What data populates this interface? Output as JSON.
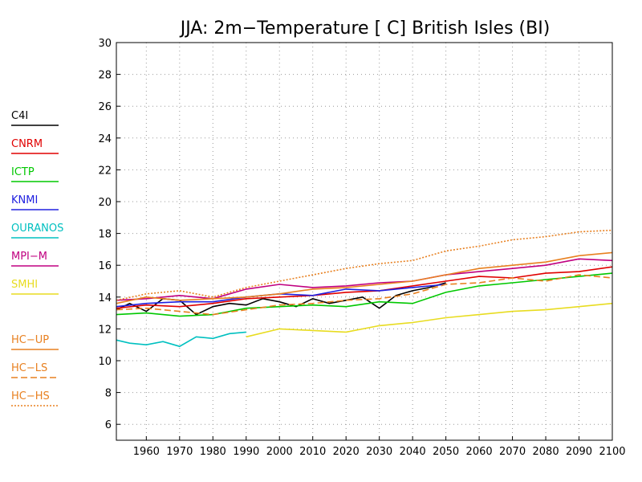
{
  "chart_data": {
    "type": "line",
    "title": "JJA: 2m−Temperature [   C] British Isles (BI)",
    "xlabel": "",
    "ylabel": "",
    "xlim": [
      1951,
      2100
    ],
    "ylim": [
      5,
      30
    ],
    "x_ticks": [
      1960,
      1970,
      1980,
      1990,
      2000,
      2010,
      2020,
      2030,
      2040,
      2050,
      2060,
      2070,
      2080,
      2090,
      2100
    ],
    "y_ticks": [
      6,
      8,
      10,
      12,
      14,
      16,
      18,
      20,
      22,
      24,
      26,
      28,
      30
    ],
    "grid": true,
    "legend_position": "left",
    "series": [
      {
        "name": "C4I",
        "color": "#000000",
        "dash": "solid",
        "x": [
          1951,
          1955,
          1960,
          1965,
          1970,
          1975,
          1980,
          1985,
          1990,
          1995,
          2000,
          2005,
          2010,
          2015,
          2020,
          2025,
          2030,
          2035,
          2040,
          2045,
          2050
        ],
        "values": [
          13.2,
          13.6,
          13.1,
          13.9,
          13.8,
          12.9,
          13.4,
          13.6,
          13.5,
          13.9,
          13.7,
          13.4,
          13.9,
          13.6,
          13.8,
          14.0,
          13.3,
          14.1,
          14.4,
          14.6,
          14.9
        ]
      },
      {
        "name": "CNRM",
        "color": "#e00000",
        "dash": "solid",
        "x": [
          1951,
          1960,
          1970,
          1980,
          1990,
          2000,
          2010,
          2020,
          2030,
          2040,
          2050,
          2060,
          2070,
          2080,
          2090,
          2100
        ],
        "values": [
          13.3,
          13.5,
          13.4,
          13.6,
          13.9,
          14.0,
          14.1,
          14.3,
          14.4,
          14.7,
          15.0,
          15.3,
          15.2,
          15.5,
          15.6,
          15.9
        ]
      },
      {
        "name": "ICTP",
        "color": "#00c800",
        "dash": "solid",
        "x": [
          1951,
          1960,
          1970,
          1980,
          1990,
          2000,
          2010,
          2020,
          2030,
          2040,
          2050,
          2060,
          2070,
          2080,
          2090,
          2100
        ],
        "values": [
          12.9,
          13.0,
          12.8,
          12.9,
          13.3,
          13.4,
          13.5,
          13.4,
          13.7,
          13.6,
          14.3,
          14.7,
          14.9,
          15.1,
          15.3,
          15.5
        ]
      },
      {
        "name": "KNMI",
        "color": "#2020e0",
        "dash": "solid",
        "x": [
          1951,
          1960,
          1970,
          1980,
          1990,
          2000,
          2010,
          2020,
          2030,
          2040,
          2050
        ],
        "values": [
          13.4,
          13.6,
          13.7,
          13.7,
          14.0,
          14.2,
          14.1,
          14.5,
          14.4,
          14.6,
          14.8
        ]
      },
      {
        "name": "OURANOS",
        "color": "#00c0c0",
        "dash": "solid",
        "x": [
          1951,
          1955,
          1960,
          1965,
          1970,
          1975,
          1980,
          1985,
          1990
        ],
        "values": [
          11.3,
          11.1,
          11.0,
          11.2,
          10.9,
          11.5,
          11.4,
          11.7,
          11.8
        ]
      },
      {
        "name": "MPI−M",
        "color": "#c00080",
        "dash": "solid",
        "x": [
          1951,
          1960,
          1970,
          1980,
          1990,
          2000,
          2010,
          2020,
          2030,
          2040,
          2050,
          2060,
          2070,
          2080,
          2090,
          2100
        ],
        "values": [
          13.8,
          13.9,
          14.1,
          13.9,
          14.5,
          14.8,
          14.6,
          14.7,
          14.9,
          15.0,
          15.4,
          15.6,
          15.8,
          16.0,
          16.4,
          16.3
        ]
      },
      {
        "name": "SMHI",
        "color": "#e8dc20",
        "dash": "solid",
        "x": [
          1990,
          2000,
          2010,
          2020,
          2030,
          2040,
          2050,
          2060,
          2070,
          2080,
          2090,
          2100
        ],
        "values": [
          11.5,
          12.0,
          11.9,
          11.8,
          12.2,
          12.4,
          12.7,
          12.9,
          13.1,
          13.2,
          13.4,
          13.6
        ]
      },
      {
        "name": "HC−UP",
        "color": "#e88020",
        "dash": "solid",
        "x": [
          1951,
          1960,
          1970,
          1980,
          1990,
          2000,
          2010,
          2020,
          2030,
          2040,
          2050,
          2060,
          2070,
          2080,
          2090,
          2100
        ],
        "values": [
          13.6,
          14.0,
          13.8,
          13.9,
          14.0,
          14.2,
          14.5,
          14.6,
          14.8,
          15.0,
          15.4,
          15.8,
          16.0,
          16.2,
          16.6,
          16.8
        ]
      },
      {
        "name": "HC−LS",
        "color": "#e88020",
        "dash": "long",
        "x": [
          1951,
          1960,
          1970,
          1980,
          1990,
          2000,
          2010,
          2020,
          2030,
          2040,
          2050,
          2060,
          2070,
          2080,
          2090,
          2100
        ],
        "values": [
          13.2,
          13.3,
          13.1,
          12.9,
          13.2,
          13.5,
          13.6,
          13.8,
          13.9,
          14.2,
          14.8,
          14.9,
          15.2,
          15.0,
          15.4,
          15.2
        ]
      },
      {
        "name": "HC−HS",
        "color": "#e88020",
        "dash": "dot",
        "x": [
          1951,
          1960,
          1970,
          1980,
          1990,
          2000,
          2010,
          2020,
          2030,
          2040,
          2050,
          2060,
          2070,
          2080,
          2090,
          2100
        ],
        "values": [
          13.8,
          14.2,
          14.4,
          14.0,
          14.6,
          15.0,
          15.4,
          15.8,
          16.1,
          16.3,
          16.9,
          17.2,
          17.6,
          17.8,
          18.1,
          18.2
        ]
      }
    ]
  }
}
